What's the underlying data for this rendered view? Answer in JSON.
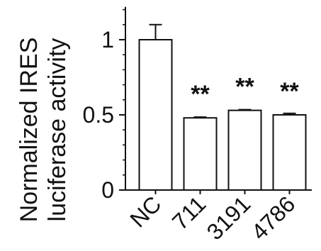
{
  "chart_data": {
    "type": "bar",
    "categories": [
      "NC",
      "711",
      "3191",
      "4786"
    ],
    "values": [
      1.0,
      0.48,
      0.53,
      0.5
    ],
    "errors": [
      0.1,
      0.005,
      0.005,
      0.01
    ],
    "annotations": [
      "",
      "**",
      "**",
      "**"
    ],
    "ylabel_line1": "Normalized IRES",
    "ylabel_line2": "luciferase activity",
    "yticks": [
      0,
      0.5,
      1
    ],
    "ytick_labels": [
      "0",
      "0.5",
      "1"
    ],
    "ylim": [
      0,
      1.2
    ],
    "bar_fill": "#ffffff",
    "bar_stroke": "#111111"
  }
}
